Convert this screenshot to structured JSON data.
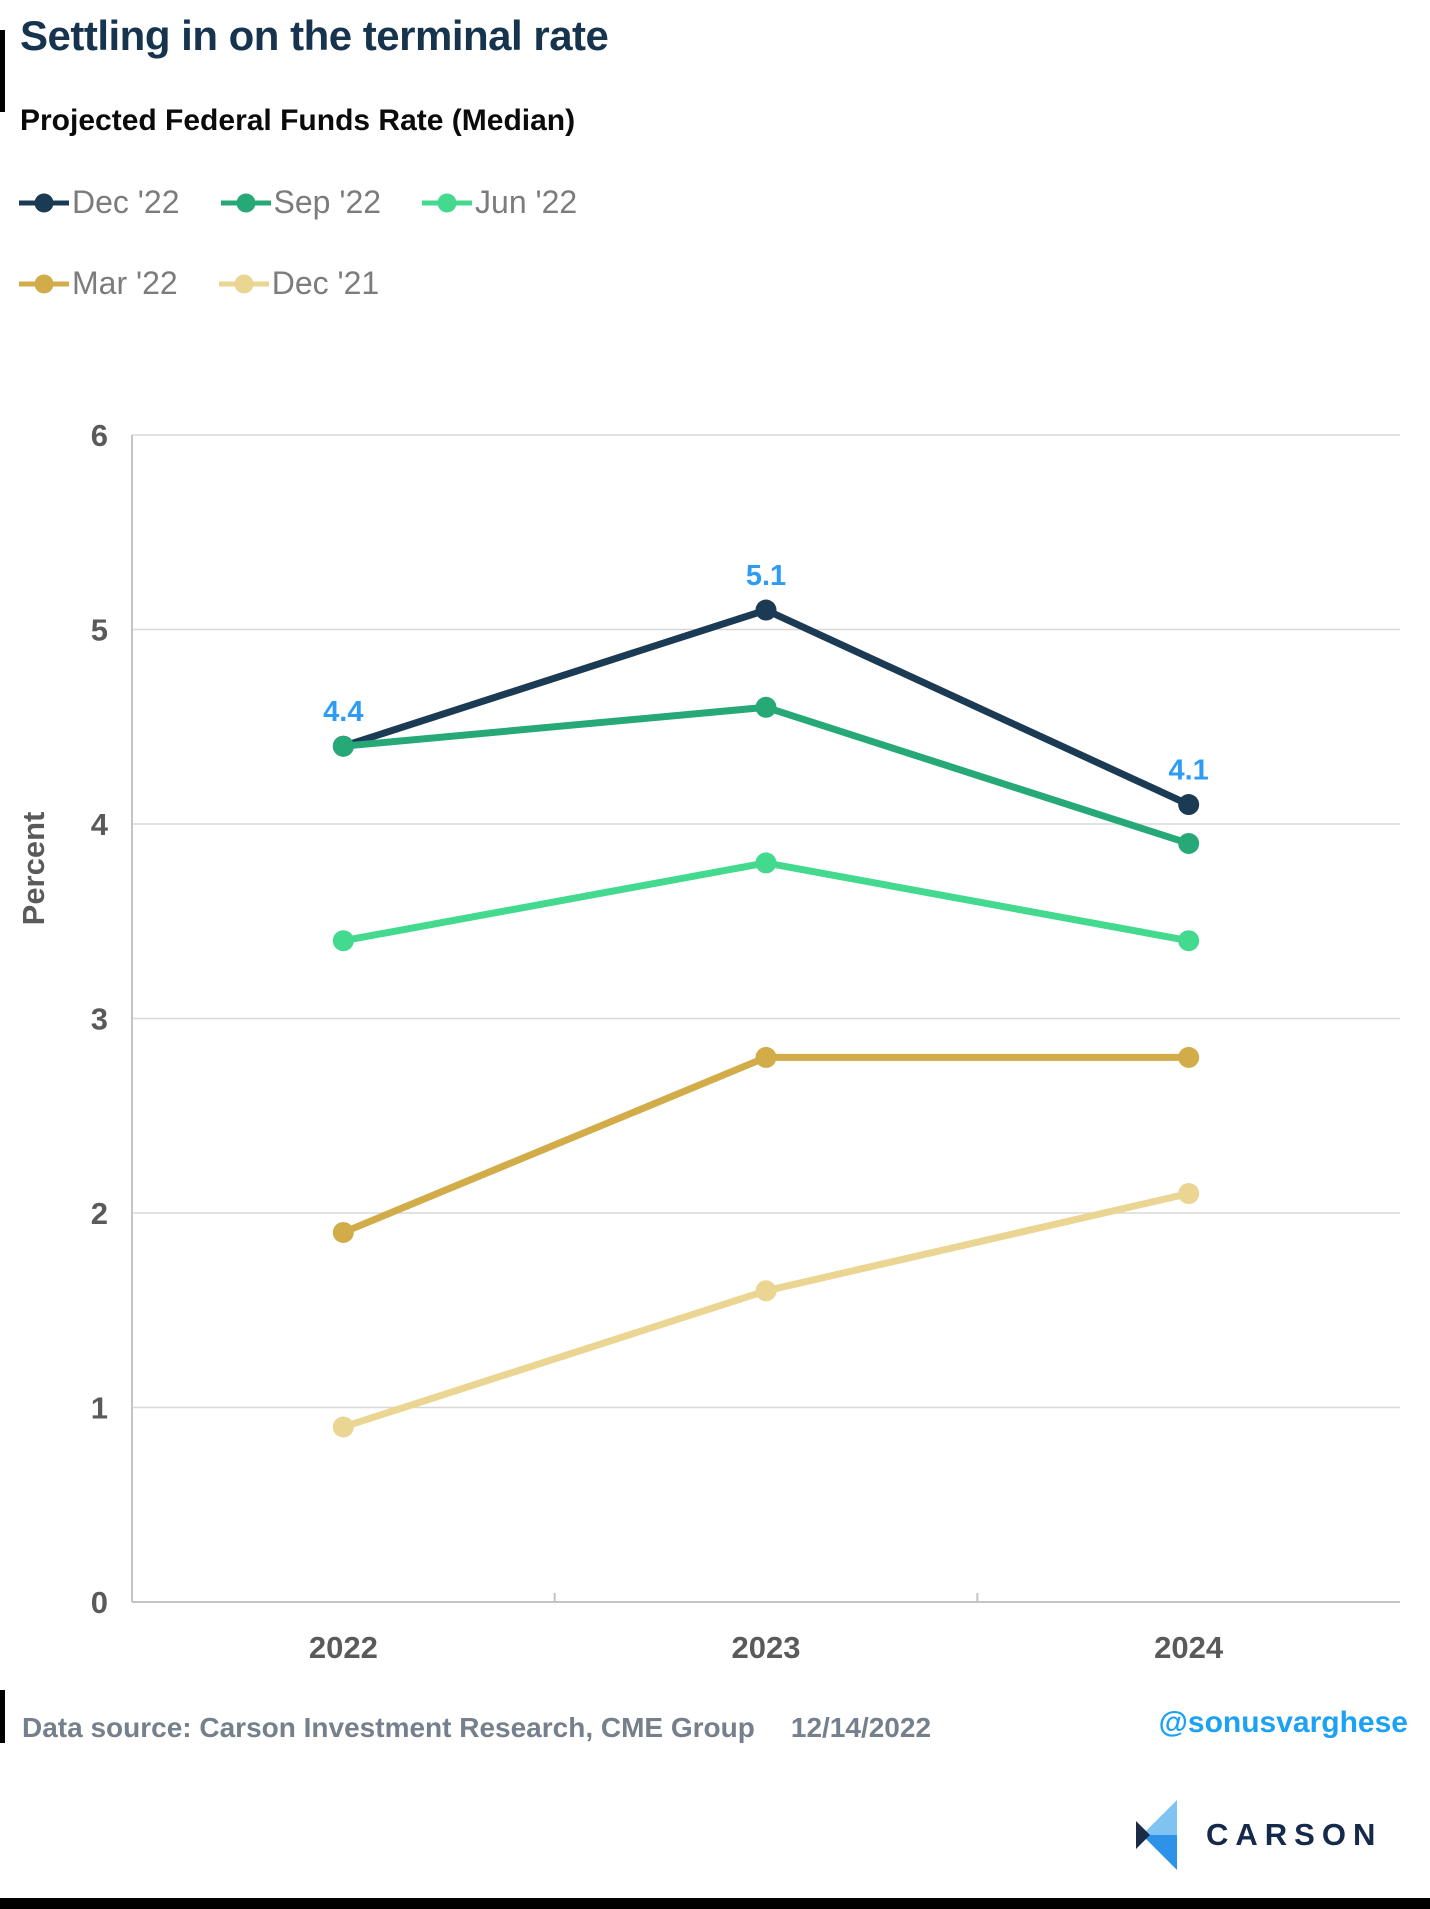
{
  "title": "Settling in on the terminal rate",
  "subtitle": "Projected Federal Funds Rate (Median)",
  "chart_data": {
    "type": "line",
    "categories": [
      "2022",
      "2023",
      "2024"
    ],
    "series": [
      {
        "name": "Dec '22",
        "color": "#1B3A54",
        "values": [
          4.4,
          5.1,
          4.1
        ],
        "point_labels": [
          "4.4",
          "5.1",
          "4.1"
        ]
      },
      {
        "name": "Sep '22",
        "color": "#27A877",
        "values": [
          4.4,
          4.6,
          3.9
        ]
      },
      {
        "name": "Jun '22",
        "color": "#43D98E",
        "values": [
          3.4,
          3.8,
          3.4
        ]
      },
      {
        "name": "Mar '22",
        "color": "#D2AC49",
        "values": [
          1.9,
          2.8,
          2.8
        ]
      },
      {
        "name": "Dec '21",
        "color": "#EBD592",
        "values": [
          0.9,
          1.6,
          2.1
        ]
      }
    ],
    "ylabel": "Percent",
    "xlabel": "",
    "ylim": [
      0,
      6
    ],
    "ytick_step": 1,
    "yticks": [
      "0",
      "1",
      "2",
      "3",
      "4",
      "5",
      "6"
    ],
    "grid": true,
    "legend_position": "top-left",
    "legend_columns": 3,
    "point_label_color": "#2D9CF4",
    "grid_color": "#D8D8D8",
    "axis_color": "#C4C4C4",
    "tick_text_color": "#5A5A5A"
  },
  "footer": {
    "source": "Data source: Carson Investment Research, CME Group",
    "date": "12/14/2022",
    "handle": "@sonusvarghese",
    "brand": "CARSON"
  }
}
